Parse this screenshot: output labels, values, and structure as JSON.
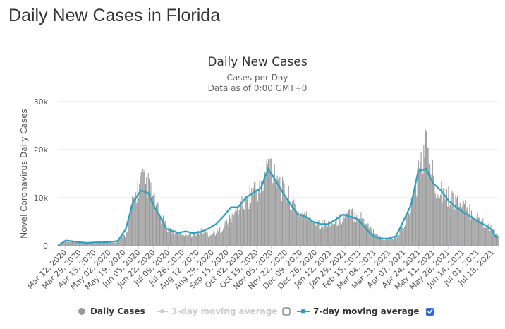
{
  "page": {
    "heading": "Daily New Cases in Florida"
  },
  "colors": {
    "bars": "#999999",
    "line7": "#28a0c3",
    "line3": "#cccccc",
    "grid": "#e6e6e6",
    "checkbox_checked": "#2d6ad8"
  },
  "chart_data": {
    "type": "bar",
    "title": "Daily New Cases",
    "subtitle_1": "Cases per Day",
    "subtitle_2": "Data as of 0:00 GMT+0",
    "ylabel": "Novel Coronavirus Daily Cases",
    "xlabel": "",
    "ylim": [
      0,
      30000
    ],
    "yticks": [
      {
        "value": 0,
        "label": "0"
      },
      {
        "value": 10000,
        "label": "10k"
      },
      {
        "value": 20000,
        "label": "20k"
      },
      {
        "value": 30000,
        "label": "30k"
      }
    ],
    "xtick_labels": [
      "Mar 12, 2020",
      "Mar 29, 2020",
      "Apr 15, 2020",
      "May 02, 2020",
      "May 19, 2020",
      "Jun 05, 2020",
      "Jun 22, 2020",
      "Jul 09, 2020",
      "Jul 26, 2020",
      "Aug 12, 2020",
      "Aug 29, 2020",
      "Sep 15, 2020",
      "Oct 02, 2020",
      "Oct 19, 2020",
      "Nov 05, 2020",
      "Nov 22, 2020",
      "Dec 09, 2020",
      "Dec 26, 2020",
      "Jan 12, 2021",
      "Jan 29, 2021",
      "Feb 15, 2021",
      "Mar 04, 2021",
      "Mar 21, 2021",
      "Apr 07, 2021",
      "Apr 24, 2021",
      "May 11, 2021",
      "May 28, 2021",
      "Jun 14, 2021",
      "Jul 01, 2021",
      "Jul 18, 2021"
    ],
    "series": [
      {
        "name": "Daily Cases",
        "kind": "bar",
        "x_index": [
          0,
          9,
          17,
          26,
          34,
          43,
          51,
          60,
          68,
          77,
          85,
          94,
          102,
          111,
          119,
          123,
          128,
          136,
          145,
          153,
          162,
          170,
          179,
          187,
          196,
          204,
          213,
          221,
          230,
          238,
          247,
          255,
          264,
          272,
          281,
          289,
          298,
          306,
          315,
          323,
          332,
          340,
          349,
          357,
          366,
          374,
          383,
          391,
          400,
          408,
          417,
          425,
          434,
          442,
          451,
          459,
          468,
          476,
          485,
          492,
          496
        ],
        "values": [
          0,
          1000,
          900,
          700,
          500,
          600,
          700,
          700,
          900,
          2500,
          9500,
          13500,
          12500,
          8000,
          5000,
          4000,
          3000,
          2500,
          2500,
          2500,
          3000,
          2500,
          2800,
          4000,
          5500,
          8000,
          9000,
          12000,
          11500,
          17000,
          15500,
          11000,
          9500,
          7000,
          6000,
          5500,
          4500,
          4500,
          5000,
          6000,
          6500,
          6500,
          5000,
          3000,
          1600,
          1400,
          1500,
          4000,
          8500,
          15000,
          21000,
          13500,
          12000,
          10000,
          9500,
          8000,
          7000,
          5500,
          4500,
          3500,
          2000
        ]
      },
      {
        "name": "7-day moving average",
        "kind": "line",
        "x_index": [
          0,
          9,
          17,
          26,
          34,
          43,
          51,
          60,
          68,
          77,
          85,
          94,
          102,
          111,
          119,
          123,
          128,
          136,
          145,
          153,
          162,
          170,
          179,
          187,
          196,
          204,
          213,
          221,
          230,
          238,
          247,
          255,
          264,
          272,
          281,
          289,
          298,
          306,
          315,
          323,
          332,
          340,
          349,
          357,
          366,
          374,
          383,
          391,
          400,
          408,
          417,
          425,
          434,
          442,
          451,
          459,
          468,
          476,
          485,
          492,
          496
        ],
        "values": [
          0,
          1100,
          900,
          700,
          600,
          700,
          700,
          800,
          1000,
          3500,
          9000,
          11500,
          11000,
          7500,
          5000,
          3500,
          3200,
          2700,
          3000,
          2600,
          2900,
          3500,
          4500,
          6000,
          8000,
          8000,
          10000,
          11000,
          12000,
          16000,
          13500,
          11000,
          8500,
          6500,
          6000,
          5000,
          4500,
          4500,
          5500,
          6500,
          6000,
          5500,
          3500,
          2000,
          1500,
          1500,
          2000,
          5000,
          8500,
          15500,
          16000,
          13000,
          11500,
          9500,
          8000,
          7000,
          6000,
          5000,
          4200,
          3200,
          1800
        ]
      },
      {
        "name": "3-day moving average",
        "kind": "line",
        "enabled": false,
        "values": []
      }
    ],
    "legend": [
      {
        "label": "Daily Cases",
        "symbol": "circle",
        "checkbox": null,
        "enabled": true
      },
      {
        "label": "3-day moving average",
        "symbol": "line-dot",
        "checkbox": false,
        "enabled": false
      },
      {
        "label": "7-day moving average",
        "symbol": "line-dot",
        "checkbox": true,
        "enabled": true
      }
    ],
    "legend_position": "bottom"
  }
}
